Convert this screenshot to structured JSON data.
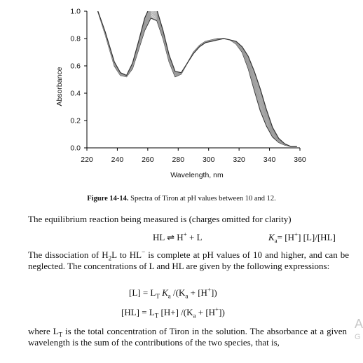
{
  "chart_data": {
    "type": "line",
    "title": "",
    "xlabel": "Wavelength, nm",
    "ylabel": "Absorbance",
    "xlim": [
      220,
      360
    ],
    "ylim": [
      0,
      1.0
    ],
    "x_ticks": [
      "220",
      "240",
      "260",
      "280",
      "300",
      "320",
      "340",
      "360"
    ],
    "y_ticks": [
      "0.0",
      "0.2",
      "0.4",
      "0.6",
      "0.8",
      "1.0"
    ],
    "grid": false,
    "series_count": 14,
    "x": [
      226,
      232,
      238,
      242,
      246,
      250,
      254,
      258,
      262,
      266,
      270,
      274,
      278,
      282,
      286,
      290,
      294,
      298,
      302,
      306,
      310,
      314,
      318,
      322,
      326,
      330,
      334,
      338,
      342,
      346,
      350,
      354,
      358
    ],
    "envelope_low": [
      1.04,
      0.83,
      0.6,
      0.53,
      0.52,
      0.58,
      0.72,
      0.86,
      0.95,
      0.93,
      0.8,
      0.63,
      0.52,
      0.54,
      0.62,
      0.7,
      0.75,
      0.78,
      0.79,
      0.8,
      0.8,
      0.79,
      0.76,
      0.7,
      0.58,
      0.42,
      0.27,
      0.16,
      0.08,
      0.04,
      0.02,
      0.01,
      0.01
    ],
    "envelope_high": [
      1.04,
      0.85,
      0.63,
      0.55,
      0.53,
      0.62,
      0.78,
      0.95,
      1.05,
      1.01,
      0.86,
      0.68,
      0.56,
      0.55,
      0.62,
      0.69,
      0.74,
      0.77,
      0.78,
      0.79,
      0.8,
      0.79,
      0.78,
      0.74,
      0.67,
      0.56,
      0.43,
      0.28,
      0.15,
      0.07,
      0.03,
      0.01,
      0.01
    ]
  },
  "figure": {
    "label": "Figure 14-14.",
    "caption": "Spectra of Tiron at pH values between 10 and 12."
  },
  "text": {
    "p1": "The equilibrium reaction being measured is (charges omitted for clarity)",
    "eq1_lhs": "HL",
    "eq1_arrow": "⇌",
    "eq1_rhs1": "H",
    "eq1_plus": "+",
    "eq1_rhs2": "+ L",
    "ka_symbol": "K",
    "ka_sub": "a",
    "ka_rhs": "= [H",
    "ka_rhs_sup": "+",
    "ka_rhs_tail": "] [L]/[HL]",
    "p2_a": "The dissociation of H",
    "p2_sub": "2",
    "p2_b": "L to HL",
    "p2_sup": "−",
    "p2_c": " is complete at pH values of 10 and higher, and can be neglected.  The concentrations of L and HL are given by the following expressions:",
    "eq2": "[L] = L",
    "eq2_sub": "T",
    "eq2_b": " K",
    "eq2_bsub": "a",
    "eq2_c": " /(K",
    "eq2_csub": "a",
    "eq2_d": " + [H",
    "eq2_dsup": "+",
    "eq2_e": "])",
    "eq3": "[HL] = L",
    "eq3_sub": "T",
    "eq3_b": " [H+] /(K",
    "eq3_bsub": "a",
    "eq3_c": " + [H",
    "eq3_csup": "+",
    "eq3_d": "])",
    "p3_a": "where L",
    "p3_sub": "T",
    "p3_b": " is the total concentration of Tiron in the solution.  The absorbance at a given wavelength is the sum of the contributions of the two species, that is,",
    "side_a": "A",
    "side_b": "G"
  },
  "colors": {
    "curve_dark": "#333333",
    "curve_light": "#9a9a9a",
    "axis": "#000000"
  }
}
